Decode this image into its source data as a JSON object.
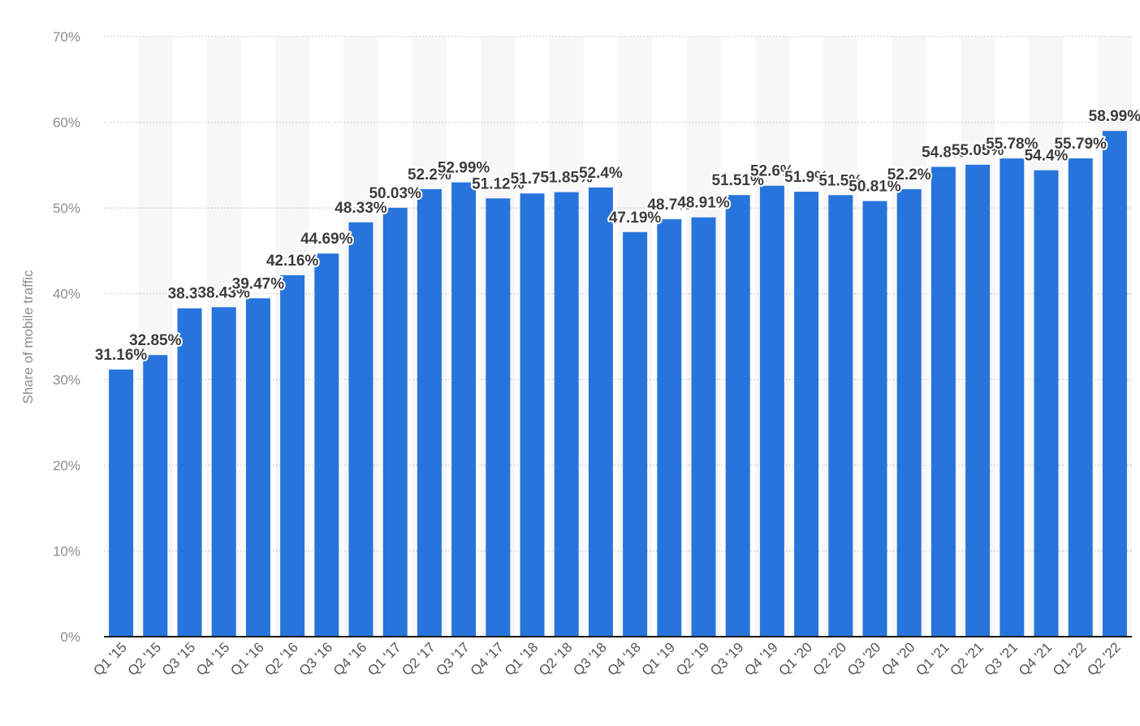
{
  "chart_data": {
    "type": "bar",
    "title": "",
    "xlabel": "",
    "ylabel": "Share of mobile traffic",
    "ylim": [
      0,
      70
    ],
    "yticks": [
      "0%",
      "10%",
      "20%",
      "30%",
      "40%",
      "50%",
      "60%",
      "70%"
    ],
    "grid": true,
    "legend": "none",
    "bar_color": "#2774dc",
    "categories": [
      "Q1 '15",
      "Q2 '15",
      "Q3 '15",
      "Q4 '15",
      "Q1 '16",
      "Q2 '16",
      "Q3 '16",
      "Q4 '16",
      "Q1 '17",
      "Q2 '17",
      "Q3 '17",
      "Q4 '17",
      "Q1 '18",
      "Q2 '18",
      "Q3 '18",
      "Q4 '18",
      "Q1 '19",
      "Q2 '19",
      "Q3 '19",
      "Q4 '19",
      "Q1 '20",
      "Q2 '20",
      "Q3 '20",
      "Q4 '20",
      "Q1 '21",
      "Q2 '21",
      "Q3 '21",
      "Q4 '21",
      "Q1 '22",
      "Q2 '22"
    ],
    "values": [
      31.16,
      32.85,
      38.3,
      38.43,
      39.47,
      42.16,
      44.69,
      48.33,
      50.03,
      52.2,
      52.99,
      51.12,
      51.7,
      51.85,
      52.4,
      47.19,
      48.7,
      48.91,
      51.51,
      52.6,
      51.9,
      51.5,
      50.81,
      52.2,
      54.8,
      55.05,
      55.78,
      54.4,
      55.79,
      58.99
    ],
    "labels": [
      "31.16%",
      "32.85%",
      "38.3%",
      "38.43%",
      "39.47%",
      "42.16%",
      "44.69%",
      "48.33%",
      "50.03%",
      "52.2%",
      "52.99%",
      "51.12%",
      "51.7%",
      "51.85%",
      "52.4%",
      "47.19%",
      "48.7%",
      "48.91%",
      "51.51%",
      "52.6%",
      "51.9%",
      "51.5%",
      "50.81%",
      "52.2%",
      "54.8%",
      "55.05%",
      "55.78%",
      "54.4%",
      "55.79%",
      "58.99%"
    ]
  }
}
